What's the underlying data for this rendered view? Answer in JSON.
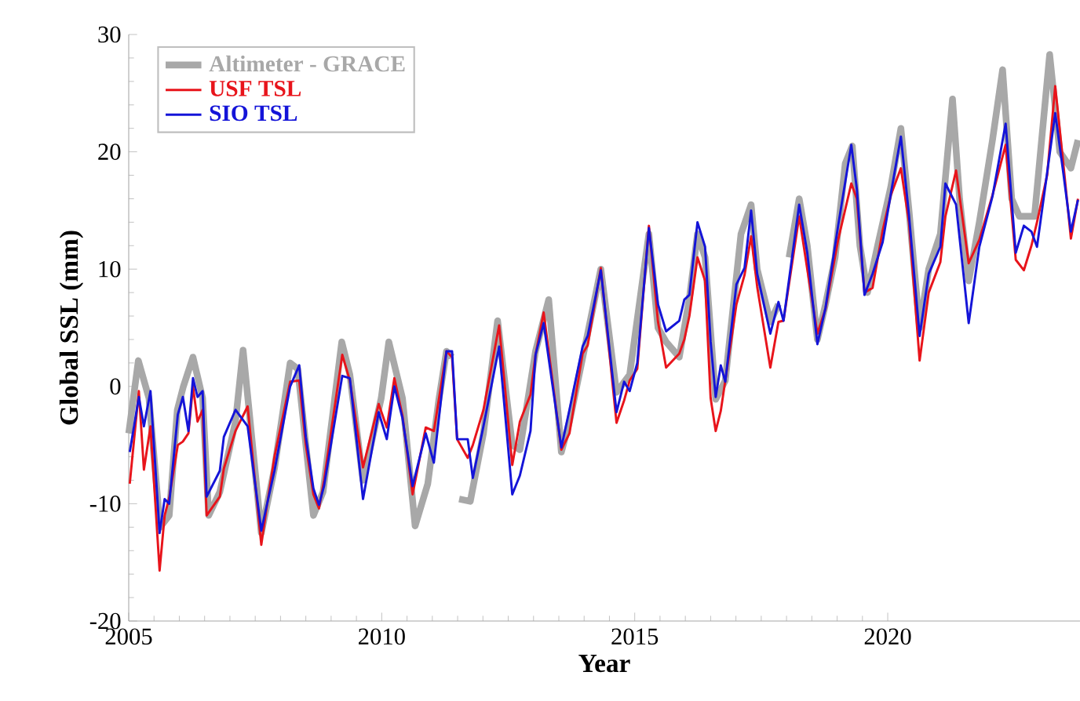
{
  "chart_data": {
    "type": "line",
    "xlabel": "Year",
    "ylabel": "Global SSL (mm)",
    "xlim": [
      2005,
      2023.8
    ],
    "xticks": [
      2005,
      2010,
      2015,
      2020
    ],
    "ylim": [
      -20,
      30
    ],
    "yticks": [
      -20,
      -10,
      0,
      10,
      20,
      30
    ],
    "legend": "top left",
    "marker": "none",
    "line_style": "solid",
    "series": [
      {
        "name": "Altimeter - GRACE",
        "color": "#a8a8a8",
        "x": [
          2005.0,
          2005.19,
          2005.4,
          2005.62,
          2005.8,
          2005.96,
          2006.08,
          2006.27,
          2006.46,
          2006.58,
          2006.8,
          2007.11,
          2007.26,
          2007.62,
          2007.88,
          2008.19,
          2008.34,
          2008.65,
          2008.84,
          2009.21,
          2009.37,
          2009.63,
          2009.99,
          2010.14,
          2010.41,
          2010.66,
          2010.91,
          2011.13,
          2011.28,
          2011.39,
          2011.47,
          2011.53,
          2011.75,
          2012.01,
          2012.29,
          2012.58,
          2012.73,
          2013.04,
          2013.3,
          2013.55,
          2013.71,
          2014.07,
          2014.33,
          2014.64,
          2014.9,
          2015.28,
          2015.46,
          2015.62,
          2015.88,
          2016.08,
          2016.24,
          2016.39,
          2016.6,
          2016.79,
          2017.1,
          2017.3,
          2017.42,
          2017.68,
          2017.84,
          2017.94,
          2018.05,
          2018.25,
          2018.41,
          2018.61,
          2018.77,
          2018.96,
          2019.16,
          2019.3,
          2019.45,
          2019.6,
          2019.8,
          2020.06,
          2020.26,
          2020.42,
          2020.63,
          2020.81,
          2021.04,
          2021.28,
          2021.42,
          2021.6,
          2021.81,
          2022.07,
          2022.27,
          2022.45,
          2022.6,
          2022.9,
          2023.2,
          2023.4,
          2023.62,
          2023.76
        ],
        "values": [
          -4,
          2.2,
          -1,
          -12,
          -11,
          -2,
          0,
          2.5,
          -1,
          -11,
          -9,
          -3,
          3.1,
          -12.5,
          -7,
          2,
          1.5,
          -11,
          -9,
          3.8,
          1,
          -8,
          -1,
          3.8,
          -1,
          -11.9,
          -8.3,
          -1.1,
          3,
          2.5,
          null,
          -9.6,
          -9.8,
          -4,
          5.6,
          -5,
          -5.4,
          3,
          7.4,
          -5.6,
          -3,
          4.5,
          10,
          -0.5,
          1,
          13,
          5,
          3.8,
          2.5,
          7.5,
          13,
          11,
          -1.1,
          0.5,
          13,
          15.5,
          10,
          5.5,
          7,
          null,
          11,
          16,
          12,
          4,
          7,
          11,
          19,
          20.5,
          12,
          8,
          12,
          17,
          22,
          15,
          5,
          10,
          13,
          24.5,
          16,
          9,
          14,
          21,
          27,
          16,
          14.5,
          14.5,
          28.3,
          20,
          18.6,
          21
        ]
      },
      {
        "name": "USF TSL",
        "color": "#e8141b",
        "x": [
          2005.02,
          2005.2,
          2005.3,
          2005.43,
          2005.61,
          2005.71,
          2005.8,
          2005.97,
          2006.07,
          2006.18,
          2006.27,
          2006.36,
          2006.46,
          2006.54,
          2006.8,
          2006.88,
          2007.11,
          2007.35,
          2007.62,
          2007.72,
          2007.88,
          2008.19,
          2008.37,
          2008.5,
          2008.65,
          2008.76,
          2008.86,
          2009.22,
          2009.37,
          2009.63,
          2009.94,
          2010.1,
          2010.25,
          2010.41,
          2010.61,
          2010.87,
          2011.03,
          2011.28,
          2011.39,
          2011.49,
          2011.7,
          2011.8,
          2012.01,
          2012.32,
          2012.58,
          2012.73,
          2012.94,
          2013.04,
          2013.2,
          2013.55,
          2013.71,
          2013.97,
          2014.07,
          2014.33,
          2014.64,
          2014.79,
          2014.9,
          2015.05,
          2015.28,
          2015.46,
          2015.62,
          2015.88,
          2015.98,
          2016.08,
          2016.24,
          2016.39,
          2016.5,
          2016.6,
          2016.7,
          2016.79,
          2017.01,
          2017.17,
          2017.3,
          2017.42,
          2017.68,
          2017.84,
          2017.94,
          2018.25,
          2018.41,
          2018.61,
          2018.77,
          2019.02,
          2019.28,
          2019.39,
          2019.54,
          2019.7,
          2019.9,
          2020.06,
          2020.26,
          2020.42,
          2020.63,
          2020.81,
          2021.04,
          2021.14,
          2021.35,
          2021.6,
          2021.81,
          2022.07,
          2022.33,
          2022.53,
          2022.69,
          2022.84,
          2022.95,
          2023.15,
          2023.31,
          2023.47,
          2023.62,
          2023.76
        ],
        "values": [
          -8.3,
          -0.4,
          -7.1,
          -3.4,
          -15.7,
          -11,
          -9.5,
          -5,
          -4.7,
          -4,
          0,
          -3,
          -2,
          -11,
          -9.4,
          -7,
          -3.8,
          -1.7,
          -13.5,
          -10.5,
          -6,
          0.4,
          0.5,
          -5,
          -9.2,
          -10.4,
          -8,
          2.7,
          0.5,
          -6.9,
          -1.5,
          -3.5,
          0.7,
          -2.5,
          -9.2,
          -3.5,
          -3.8,
          3,
          2.5,
          -4.5,
          -6.1,
          -5,
          -2,
          5.2,
          -6.7,
          -3,
          -0.7,
          2.7,
          6.3,
          -5.4,
          -4,
          2.8,
          3.5,
          10.1,
          -3.1,
          -1.2,
          0.5,
          1.5,
          13.7,
          5.5,
          1.6,
          2.8,
          4,
          6,
          11,
          9,
          -1,
          -3.8,
          -2.1,
          0.5,
          7,
          9.5,
          12.8,
          8.5,
          1.6,
          5.5,
          5.6,
          14.5,
          10,
          4.5,
          6.6,
          12.5,
          17.3,
          16,
          8,
          8.4,
          13.3,
          16.3,
          18.6,
          14,
          2.2,
          8,
          10.6,
          14.5,
          18.4,
          10.5,
          12.5,
          16.3,
          20.6,
          10.8,
          9.9,
          12,
          14,
          18,
          25.6,
          19,
          12.6,
          16
        ]
      },
      {
        "name": "SIO TSL",
        "color": "#1414d8",
        "x": [
          2005.02,
          2005.2,
          2005.3,
          2005.43,
          2005.61,
          2005.71,
          2005.8,
          2005.97,
          2006.07,
          2006.18,
          2006.27,
          2006.36,
          2006.46,
          2006.54,
          2006.8,
          2006.88,
          2007.11,
          2007.35,
          2007.62,
          2007.72,
          2007.88,
          2008.19,
          2008.37,
          2008.5,
          2008.65,
          2008.76,
          2008.86,
          2009.22,
          2009.37,
          2009.63,
          2009.94,
          2010.1,
          2010.25,
          2010.41,
          2010.61,
          2010.87,
          2011.03,
          2011.28,
          2011.39,
          2011.49,
          2011.7,
          2011.8,
          2012.01,
          2012.32,
          2012.58,
          2012.73,
          2012.94,
          2013.04,
          2013.2,
          2013.55,
          2013.71,
          2013.97,
          2014.07,
          2014.33,
          2014.64,
          2014.79,
          2014.9,
          2015.05,
          2015.28,
          2015.46,
          2015.62,
          2015.88,
          2015.98,
          2016.08,
          2016.24,
          2016.39,
          2016.5,
          2016.6,
          2016.7,
          2016.79,
          2017.01,
          2017.17,
          2017.3,
          2017.42,
          2017.68,
          2017.84,
          2017.94,
          2018.25,
          2018.41,
          2018.61,
          2018.77,
          2019.02,
          2019.28,
          2019.39,
          2019.54,
          2019.7,
          2019.9,
          2020.06,
          2020.26,
          2020.42,
          2020.63,
          2020.81,
          2021.04,
          2021.14,
          2021.35,
          2021.6,
          2021.81,
          2022.07,
          2022.33,
          2022.53,
          2022.69,
          2022.84,
          2022.95,
          2023.15,
          2023.31,
          2023.47,
          2023.62,
          2023.76
        ],
        "values": [
          -5.6,
          -0.9,
          -3.4,
          -0.4,
          -12.5,
          -9.6,
          -10,
          -2.4,
          -0.9,
          -3.8,
          0.7,
          -0.9,
          -0.4,
          -9.4,
          -7.2,
          -4.3,
          -2,
          -3.4,
          -12.3,
          -10.3,
          -7.2,
          0,
          1.8,
          -4.3,
          -8.7,
          -10.1,
          -8.5,
          0.9,
          0.7,
          -9.6,
          -2.2,
          -4.5,
          0,
          -2.7,
          -8.5,
          -4,
          -6.5,
          3,
          3,
          -4.5,
          -4.5,
          -7.8,
          -3.4,
          3.4,
          -9.2,
          -7.6,
          -3.8,
          2.7,
          5.4,
          -5.2,
          -2,
          3.4,
          4.3,
          9.9,
          -2.2,
          0.4,
          -0.4,
          2,
          13.5,
          7,
          4.7,
          5.6,
          7.4,
          7.8,
          14,
          11.9,
          3.8,
          -0.9,
          1.8,
          0.4,
          8.7,
          10.1,
          15,
          9.6,
          4.5,
          7.2,
          5.6,
          15.5,
          11.4,
          3.6,
          6.7,
          13.7,
          20.6,
          16.8,
          7.8,
          9.6,
          12.3,
          16.4,
          21.3,
          14.6,
          4.3,
          9.6,
          11.9,
          17.3,
          15.5,
          5.4,
          11.9,
          16.2,
          22.4,
          11.4,
          13.7,
          13.2,
          11.9,
          18.2,
          23.3,
          18.2,
          13.2,
          15.9
        ]
      }
    ]
  }
}
